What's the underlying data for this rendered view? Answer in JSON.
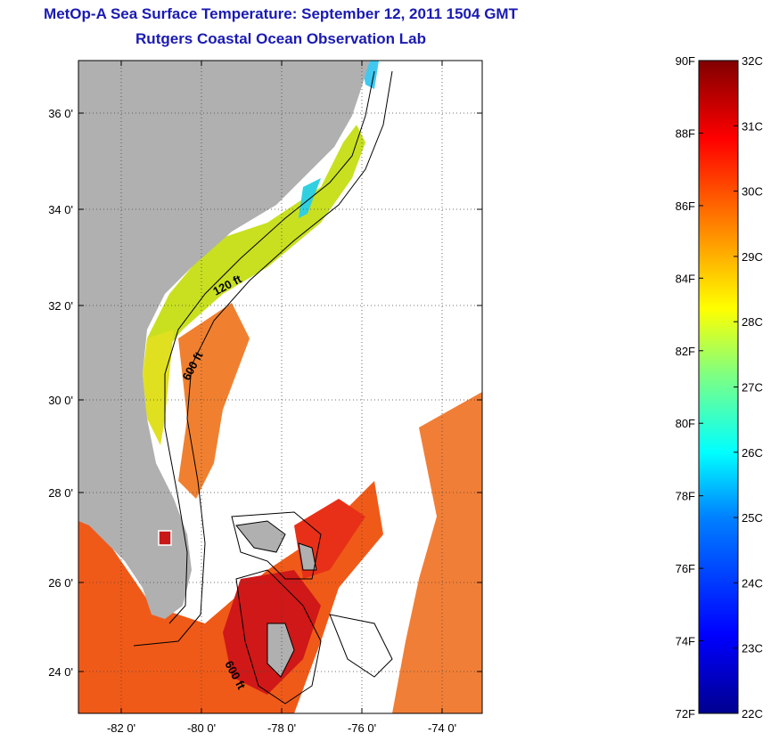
{
  "title": "MetOp-A Sea Surface Temperature:  September 12, 2011 1504 GMT",
  "subtitle": "Rutgers Coastal Ocean Observation Lab",
  "map": {
    "lat_ticks": [
      "36 0'",
      "34 0'",
      "32 0'",
      "30 0'",
      "28 0'",
      "26 0'",
      "24 0'"
    ],
    "lon_ticks": [
      "-82 0'",
      "-80 0'",
      "-78 0'",
      "-76 0'",
      "-74 0'"
    ],
    "contour_labels": [
      "120 ft",
      "600 ft",
      "600 ft"
    ],
    "land_color": "#b0b0b0"
  },
  "colorbar": {
    "fahrenheit_labels": [
      "90F",
      "88F",
      "86F",
      "84F",
      "82F",
      "80F",
      "78F",
      "76F",
      "74F",
      "72F"
    ],
    "celsius_labels": [
      "32C",
      "31C",
      "30C",
      "29C",
      "28C",
      "27C",
      "26C",
      "25C",
      "24C",
      "23C",
      "22C"
    ],
    "range_c": [
      22,
      32
    ],
    "range_f": [
      72,
      90
    ],
    "colormap": [
      "#00008f",
      "#0000ff",
      "#0080ff",
      "#00ffff",
      "#80ff80",
      "#ffff00",
      "#ff8000",
      "#ff0000",
      "#800000"
    ]
  }
}
